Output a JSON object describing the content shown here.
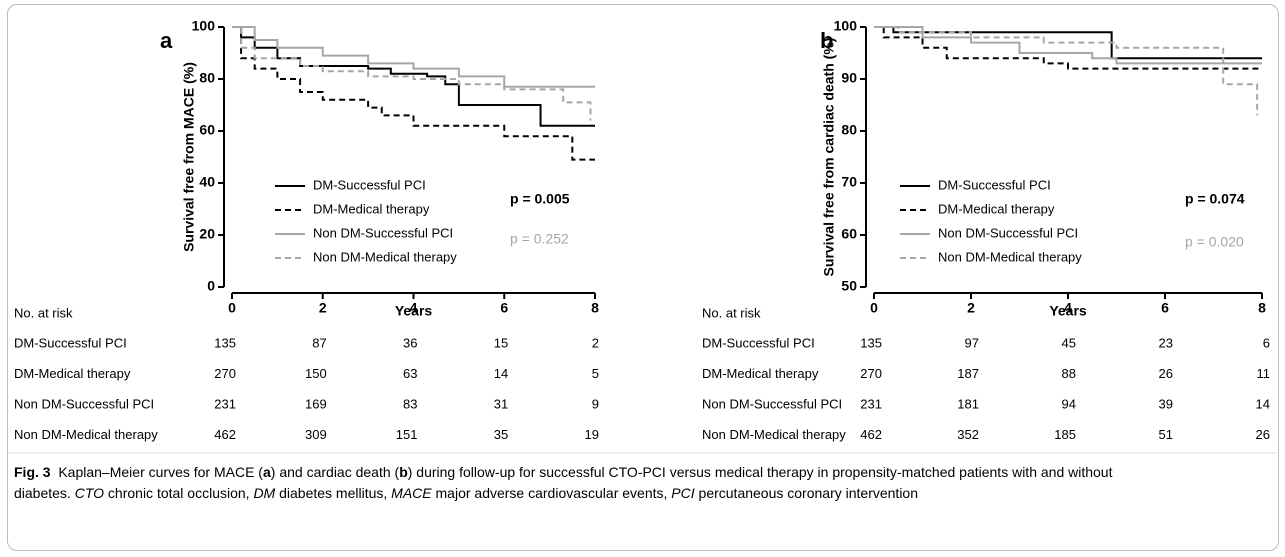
{
  "chart_data": [
    {
      "type": "step",
      "panel_label": "a",
      "ylabel": "Survival free from MACE (%)",
      "xlabel": "Years",
      "xlim": [
        0,
        8
      ],
      "ylim": [
        0,
        100
      ],
      "xticks": [
        0,
        2,
        4,
        6,
        8
      ],
      "yticks": [
        0,
        20,
        40,
        60,
        80,
        100
      ],
      "risk_table_title": "No. at risk",
      "series": [
        {
          "name": "DM-Successful PCI",
          "color": "#000000",
          "dashed": false,
          "x": [
            0,
            0.2,
            0.5,
            1,
            1.5,
            3,
            3.5,
            4.3,
            4.7,
            5,
            6.8,
            8
          ],
          "values": [
            100,
            96,
            92,
            88,
            85,
            84,
            82,
            81,
            78,
            70,
            62,
            62
          ],
          "at_risk": [
            135,
            87,
            36,
            15,
            2
          ]
        },
        {
          "name": "DM-Medical therapy",
          "color": "#000000",
          "dashed": true,
          "x": [
            0,
            0.2,
            0.5,
            1,
            1.5,
            2,
            3,
            3.3,
            4,
            6,
            7.5,
            8
          ],
          "values": [
            100,
            88,
            84,
            80,
            75,
            72,
            69,
            66,
            62,
            58,
            49,
            49
          ],
          "at_risk": [
            270,
            150,
            63,
            14,
            5
          ]
        },
        {
          "name": "Non DM-Successful PCI",
          "color": "#a6a6a6",
          "dashed": false,
          "x": [
            0,
            0.5,
            1,
            2,
            3,
            4,
            5,
            6,
            8
          ],
          "values": [
            100,
            95,
            92,
            89,
            86,
            84,
            81,
            77,
            77
          ],
          "at_risk": [
            231,
            169,
            83,
            31,
            9
          ]
        },
        {
          "name": "Non DM-Medical therapy",
          "color": "#a6a6a6",
          "dashed": true,
          "x": [
            0,
            0.2,
            0.5,
            1.5,
            2,
            3,
            4,
            5,
            6,
            7.3,
            7.9
          ],
          "values": [
            100,
            92,
            88,
            85,
            83,
            81,
            80,
            78,
            76,
            71,
            64
          ],
          "at_risk": [
            462,
            309,
            151,
            35,
            19
          ]
        }
      ],
      "annotations": [
        {
          "text": "p = 0.005",
          "color": "#000000",
          "bold": true
        },
        {
          "text": "p = 0.252",
          "color": "#a6a6a6",
          "bold": false
        }
      ]
    },
    {
      "type": "step",
      "panel_label": "b",
      "ylabel": "Survival free from cardiac death (%)",
      "xlabel": "Years",
      "xlim": [
        0,
        8
      ],
      "ylim": [
        50,
        100
      ],
      "xticks": [
        0,
        2,
        4,
        6,
        8
      ],
      "yticks": [
        50,
        60,
        70,
        80,
        90,
        100
      ],
      "risk_table_title": "No. at risk",
      "series": [
        {
          "name": "DM-Successful PCI",
          "color": "#000000",
          "dashed": false,
          "x": [
            0,
            0.4,
            4.9,
            8
          ],
          "values": [
            100,
            99,
            94,
            94
          ],
          "at_risk": [
            135,
            97,
            45,
            23,
            6
          ]
        },
        {
          "name": "DM-Medical therapy",
          "color": "#000000",
          "dashed": true,
          "x": [
            0,
            0.2,
            1,
            1.5,
            3.5,
            4,
            8
          ],
          "values": [
            100,
            98,
            96,
            94,
            93,
            92,
            92
          ],
          "at_risk": [
            270,
            187,
            88,
            26,
            11
          ]
        },
        {
          "name": "Non DM-Successful PCI",
          "color": "#a6a6a6",
          "dashed": false,
          "x": [
            0,
            1,
            2,
            3,
            4.5,
            5,
            8
          ],
          "values": [
            100,
            98,
            97,
            95,
            94,
            93,
            93
          ],
          "at_risk": [
            231,
            181,
            94,
            39,
            14
          ]
        },
        {
          "name": "Non DM-Medical therapy",
          "color": "#a6a6a6",
          "dashed": true,
          "x": [
            0,
            0.5,
            2,
            3.5,
            5,
            7.2,
            7.9
          ],
          "values": [
            100,
            99,
            98,
            97,
            96,
            89,
            83
          ],
          "at_risk": [
            462,
            352,
            185,
            51,
            26
          ]
        }
      ],
      "annotations": [
        {
          "text": "p = 0.074",
          "color": "#000000",
          "bold": true
        },
        {
          "text": "p = 0.020",
          "color": "#a6a6a6",
          "bold": false
        }
      ]
    }
  ],
  "caption": {
    "label": "Fig. 3",
    "parts": [
      "Kaplan–Meier curves for MACE (",
      "a",
      ") and cardiac death (",
      "b",
      ") during follow-up for successful CTO-PCI versus medical therapy in propensity-matched patients with and without diabetes. ",
      "CTO",
      " chronic total occlusion, ",
      "DM",
      " diabetes mellitus, ",
      "MACE",
      " major adverse cardiovascular events, ",
      "PCI",
      " percutaneous coronary intervention"
    ]
  }
}
